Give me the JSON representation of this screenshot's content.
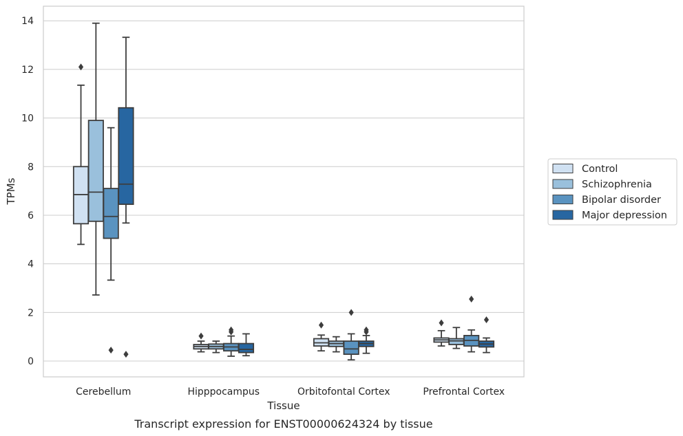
{
  "caption": "Transcript expression for ENST00000624324 by tissue",
  "chart_data": {
    "type": "boxplot",
    "xlabel": "Tissue",
    "ylabel": "TPMs",
    "ylim": [
      -0.65,
      14.6
    ],
    "yticks": [
      0,
      2,
      4,
      6,
      8,
      10,
      12,
      14
    ],
    "grid": true,
    "legend_placement": "right",
    "categories": [
      "Cerebellum",
      "Hipppocampus",
      "Orbitofontal Cortex",
      "Prefrontal Cortex"
    ],
    "series": [
      {
        "name": "Control",
        "color": "#d0e1f2",
        "boxes": [
          {
            "whislo": 4.8,
            "q1": 5.65,
            "med": 6.85,
            "q3": 8.0,
            "whishi": 11.35,
            "fliers": [
              12.1
            ]
          },
          {
            "whislo": 0.38,
            "q1": 0.5,
            "med": 0.6,
            "q3": 0.68,
            "whishi": 0.82,
            "fliers": [
              1.03
            ]
          },
          {
            "whislo": 0.42,
            "q1": 0.62,
            "med": 0.75,
            "q3": 0.92,
            "whishi": 1.07,
            "fliers": [
              1.48
            ]
          },
          {
            "whislo": 0.62,
            "q1": 0.78,
            "med": 0.87,
            "q3": 0.95,
            "whishi": 1.25,
            "fliers": [
              1.57
            ]
          }
        ]
      },
      {
        "name": "Schizophrenia",
        "color": "#9ac0dc",
        "boxes": [
          {
            "whislo": 2.72,
            "q1": 5.75,
            "med": 6.95,
            "q3": 9.9,
            "whishi": 13.9,
            "fliers": []
          },
          {
            "whislo": 0.35,
            "q1": 0.5,
            "med": 0.6,
            "q3": 0.7,
            "whishi": 0.82,
            "fliers": []
          },
          {
            "whislo": 0.38,
            "q1": 0.6,
            "med": 0.72,
            "q3": 0.82,
            "whishi": 1.0,
            "fliers": []
          },
          {
            "whislo": 0.52,
            "q1": 0.68,
            "med": 0.83,
            "q3": 0.92,
            "whishi": 1.38,
            "fliers": []
          }
        ]
      },
      {
        "name": "Bipolar disorder",
        "color": "#5a93c0",
        "boxes": [
          {
            "whislo": 3.33,
            "q1": 5.05,
            "med": 5.95,
            "q3": 7.1,
            "whishi": 9.6,
            "fliers": [
              0.45
            ]
          },
          {
            "whislo": 0.2,
            "q1": 0.42,
            "med": 0.58,
            "q3": 0.72,
            "whishi": 1.03,
            "fliers": [
              1.2,
              1.28
            ]
          },
          {
            "whislo": 0.05,
            "q1": 0.28,
            "med": 0.5,
            "q3": 0.82,
            "whishi": 1.12,
            "fliers": [
              2.0
            ]
          },
          {
            "whislo": 0.38,
            "q1": 0.62,
            "med": 0.85,
            "q3": 1.05,
            "whishi": 1.28,
            "fliers": [
              2.55
            ]
          }
        ]
      },
      {
        "name": "Major depression",
        "color": "#2766a1",
        "boxes": [
          {
            "whislo": 5.68,
            "q1": 6.45,
            "med": 7.28,
            "q3": 10.42,
            "whishi": 13.32,
            "fliers": [
              0.28
            ]
          },
          {
            "whislo": 0.22,
            "q1": 0.35,
            "med": 0.48,
            "q3": 0.72,
            "whishi": 1.12,
            "fliers": []
          },
          {
            "whislo": 0.32,
            "q1": 0.6,
            "med": 0.72,
            "q3": 0.82,
            "whishi": 1.05,
            "fliers": [
              1.2,
              1.28
            ]
          },
          {
            "whislo": 0.35,
            "q1": 0.58,
            "med": 0.7,
            "q3": 0.82,
            "whishi": 0.95,
            "fliers": [
              1.7
            ]
          }
        ]
      }
    ]
  }
}
